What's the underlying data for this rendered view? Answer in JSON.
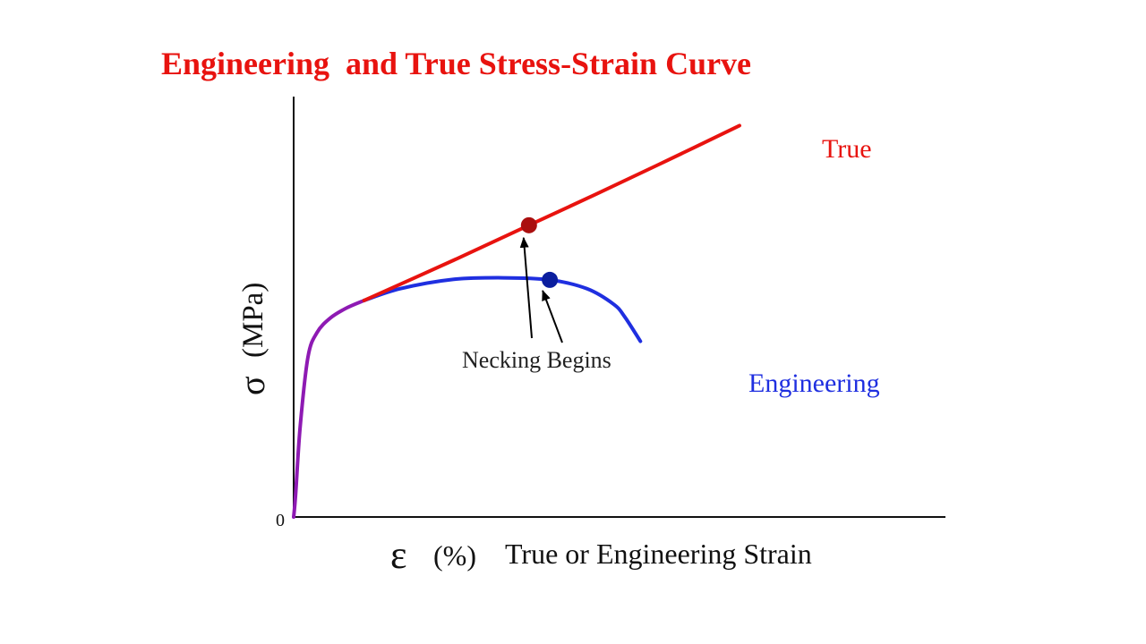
{
  "title": "Engineering  and True Stress-Strain Curve",
  "chart_data": {
    "type": "line",
    "title": "Engineering  and True Stress-Strain Curve",
    "xlabel_symbol": "ε",
    "xlabel_unit": "(%)",
    "xlabel": "True or Engineering Strain",
    "ylabel_symbol": "σ",
    "ylabel_unit": "(MPa)",
    "origin_label": "0",
    "grid": false,
    "legend": "none (series labelled directly on curves)",
    "series": [
      {
        "name": "True",
        "color": "#e8130f",
        "label_color": "#e8130f",
        "points": [
          [
            10.8,
            51.5
          ],
          [
            25.0,
            61.4
          ],
          [
            36.1,
            69.4
          ],
          [
            46.4,
            76.8
          ],
          [
            57.3,
            84.8
          ],
          [
            68.4,
            93.1
          ]
        ]
      },
      {
        "name": "Engineering",
        "color": "#1f2fe0",
        "label_color": "#1f2fe0",
        "points": [
          [
            10.8,
            51.5
          ],
          [
            16.3,
            54.3
          ],
          [
            24.3,
            56.5
          ],
          [
            32.1,
            56.9
          ],
          [
            39.3,
            56.4
          ],
          [
            45.0,
            54.3
          ],
          [
            49.1,
            50.6
          ],
          [
            50.8,
            47.6
          ],
          [
            53.2,
            41.8
          ]
        ]
      },
      {
        "name": "",
        "color": "#8e1ab3",
        "points": [
          [
            0.0,
            0.0
          ],
          [
            0.3,
            5.3
          ],
          [
            1.0,
            21.5
          ],
          [
            2.2,
            38.1
          ],
          [
            3.6,
            43.9
          ],
          [
            5.6,
            47.3
          ],
          [
            8.1,
            49.7
          ],
          [
            10.8,
            51.5
          ]
        ]
      }
    ],
    "markers": [
      {
        "series": "True",
        "x": 36.1,
        "y": 69.4,
        "color": "#aa0f0f"
      },
      {
        "series": "Engineering",
        "x": 39.3,
        "y": 56.4,
        "color": "#0b1e9e"
      }
    ],
    "annotation": {
      "text": "Necking Begins",
      "points_to": [
        "True",
        "Engineering"
      ]
    },
    "axis_color": "#111111",
    "xlim": [
      0,
      100
    ],
    "ylim": [
      0,
      100
    ]
  }
}
